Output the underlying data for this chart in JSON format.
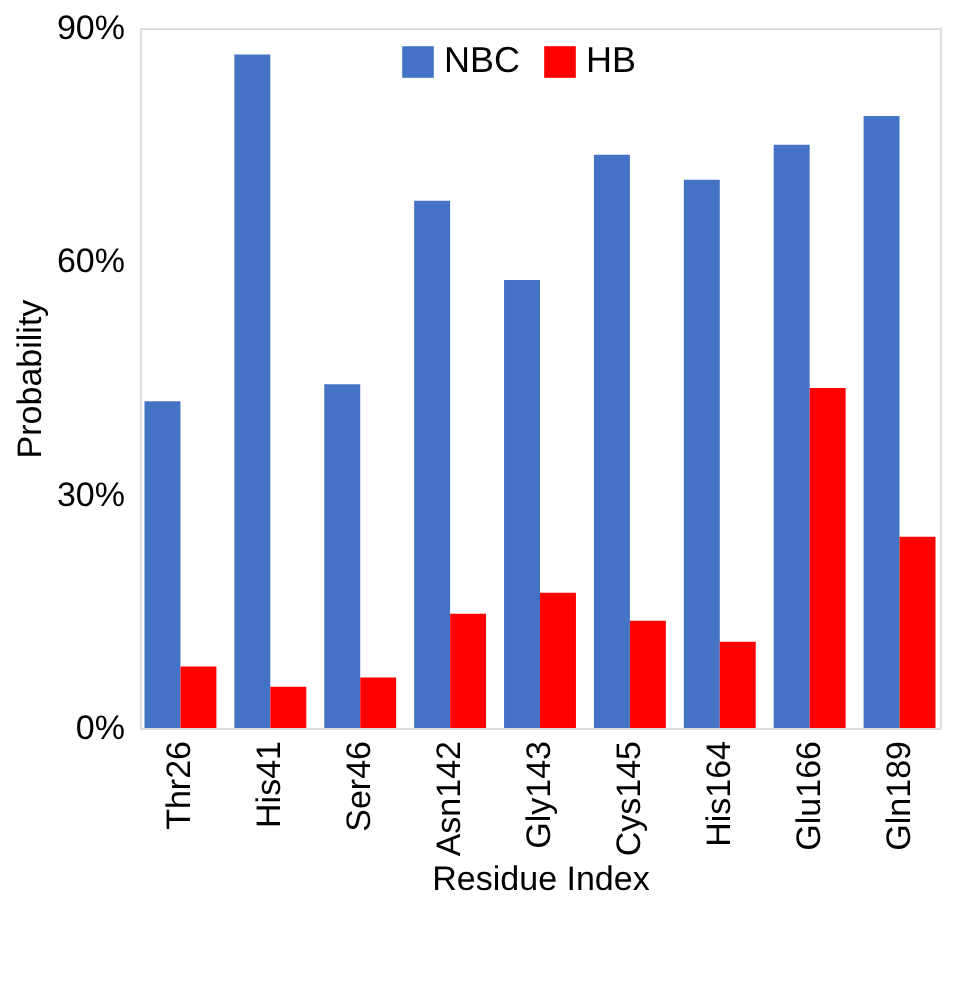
{
  "chart_data": {
    "type": "bar",
    "xlabel": "Residue Index",
    "ylabel": "Probability",
    "categories": [
      "Thr26",
      "His41",
      "Ser46",
      "Asn142",
      "Gly143",
      "Cys145",
      "His164",
      "Glu166",
      "Gln189"
    ],
    "series": [
      {
        "name": "NBC",
        "color": "#4472c4",
        "values": [
          42,
          86.6,
          44.2,
          67.8,
          57.6,
          73.7,
          70.5,
          75,
          78.7
        ]
      },
      {
        "name": "HB",
        "color": "#ff0000",
        "values": [
          7.9,
          5.3,
          6.5,
          14.7,
          17.4,
          13.8,
          11.1,
          43.7,
          24.6
        ]
      }
    ],
    "ylim": [
      0,
      90
    ],
    "yticks": [
      {
        "value": 0,
        "label": "0%"
      },
      {
        "value": 30,
        "label": "30%"
      },
      {
        "value": 60,
        "label": "60%"
      },
      {
        "value": 90,
        "label": "90%"
      }
    ],
    "grid": false,
    "legend": "top"
  }
}
